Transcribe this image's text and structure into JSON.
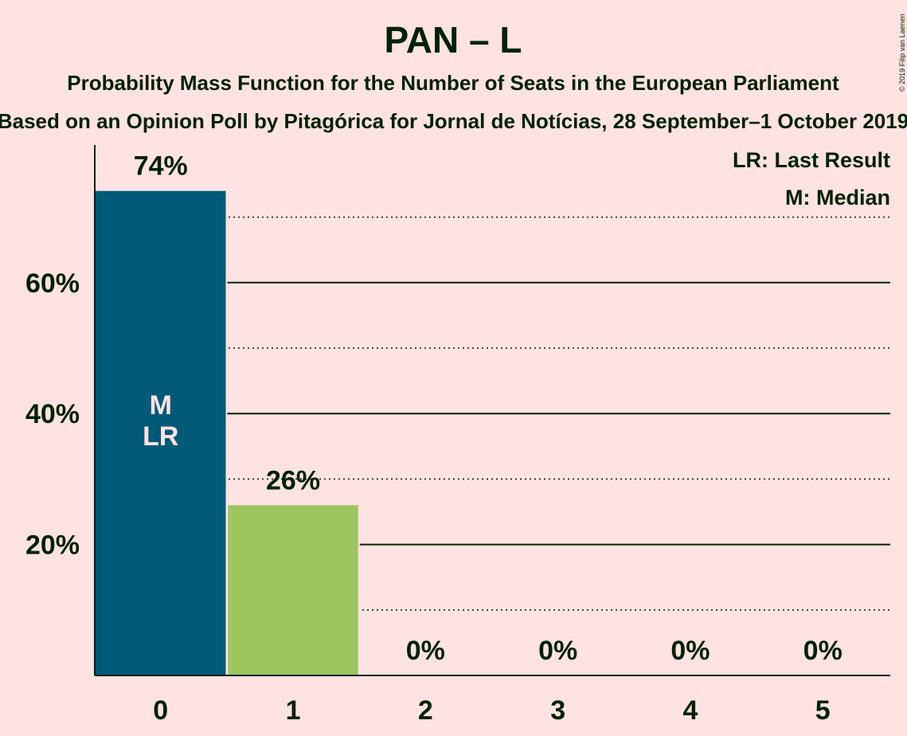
{
  "chart_data": {
    "type": "bar",
    "title": "PAN – L",
    "subtitle": "Probability Mass Function for the Number of Seats in the European Parliament",
    "subtitle2": "Based on an Opinion Poll by Pitagórica for Jornal de Notícias, 28 September–1 October 2019",
    "copyright": "© 2019 Filip van Laenen",
    "categories": [
      "0",
      "1",
      "2",
      "3",
      "4",
      "5"
    ],
    "values": [
      74,
      26,
      0,
      0,
      0,
      0
    ],
    "value_labels": [
      "74%",
      "26%",
      "0%",
      "0%",
      "0%",
      "0%"
    ],
    "bar_colors": [
      "#005a78",
      "#9dc65f",
      "#9dc65f",
      "#9dc65f",
      "#9dc65f",
      "#9dc65f"
    ],
    "ylim": [
      0,
      80
    ],
    "y_ticks": [
      {
        "value": 20,
        "label": "20%"
      },
      {
        "value": 40,
        "label": "40%"
      },
      {
        "value": 60,
        "label": "60%"
      }
    ],
    "dotted_gridlines": [
      10,
      30,
      50,
      70
    ],
    "median_seat": 0,
    "last_result_seat": 0,
    "median_marker": "M",
    "last_result_marker": "LR",
    "legend": [
      "LR: Last Result",
      "M: Median"
    ],
    "legend_position": "top-right",
    "grid": true,
    "xlabel": "",
    "ylabel": ""
  },
  "colors": {
    "background": "#ffe2e2",
    "text": "#002200",
    "median_bar": "#005a78",
    "other_bar": "#9dc65f"
  }
}
